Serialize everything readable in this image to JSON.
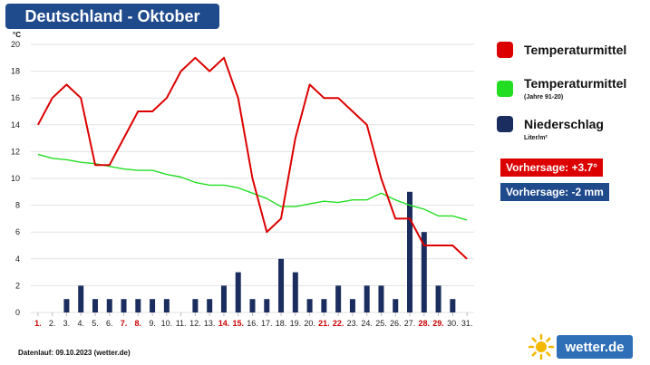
{
  "title": "Deutschland - Oktober",
  "chart_data": {
    "type": "line",
    "y_unit": "°C",
    "y_ticks": [
      0,
      2,
      4,
      6,
      8,
      10,
      12,
      14,
      16,
      18,
      20
    ],
    "ylim": [
      0,
      20
    ],
    "categories": [
      "1.",
      "2.",
      "3.",
      "4.",
      "5.",
      "6.",
      "7.",
      "8.",
      "9.",
      "10.",
      "11.",
      "12.",
      "13.",
      "14.",
      "15.",
      "16.",
      "17.",
      "18.",
      "19.",
      "20.",
      "21.",
      "22.",
      "23.",
      "24.",
      "25.",
      "26.",
      "27.",
      "28.",
      "29.",
      "30.",
      "31."
    ],
    "highlighted_categories": [
      "1.",
      "7.",
      "8.",
      "14.",
      "15.",
      "21.",
      "22.",
      "28.",
      "29."
    ],
    "series": [
      {
        "name": "Temperaturmittel",
        "type": "line",
        "color": "#dd0000",
        "values": [
          14,
          16,
          17,
          16,
          11,
          11,
          13,
          15,
          15,
          16,
          18,
          19,
          18,
          19,
          16,
          10,
          6,
          7,
          13,
          17,
          16,
          16,
          15,
          14,
          10,
          7,
          7,
          5,
          5,
          5,
          4
        ]
      },
      {
        "name": "Temperaturmittel",
        "subtitle": "(Jahre 91-20)",
        "type": "line",
        "color": "#22dd22",
        "values": [
          11.8,
          11.5,
          11.4,
          11.2,
          11.1,
          10.9,
          10.7,
          10.6,
          10.6,
          10.3,
          10.1,
          9.7,
          9.5,
          9.5,
          9.3,
          8.9,
          8.5,
          7.9,
          7.9,
          8.1,
          8.3,
          8.2,
          8.4,
          8.4,
          8.9,
          8.4,
          8.0,
          7.7,
          7.2,
          7.2,
          6.9
        ]
      },
      {
        "name": "Niederschlag",
        "unit": "Liter/m²",
        "type": "bar",
        "color": "#1b2d5e",
        "values": [
          0,
          0,
          1,
          2,
          1,
          1,
          1,
          1,
          1,
          1,
          0,
          1,
          1,
          2,
          3,
          1,
          1,
          4,
          3,
          1,
          1,
          2,
          1,
          2,
          2,
          1,
          9,
          6,
          2,
          1,
          0
        ]
      }
    ],
    "grid": "horizontal"
  },
  "legend": [
    {
      "label": "Temperaturmittel",
      "sub": "",
      "color": "#dd0000"
    },
    {
      "label": "Temperaturmittel",
      "sub": "(Jahre 91-20)",
      "color": "#22dd22"
    },
    {
      "label": "Niederschlag",
      "sub": "Liter/m²",
      "color": "#1b2d5e"
    }
  ],
  "forecast": [
    {
      "text": "Vorhersage: +3.7°",
      "color": "#dd0000"
    },
    {
      "text": "Vorhersage: -2 mm",
      "color": "#1f4a8c"
    }
  ],
  "footer": "Datenlauf: 09.10.2023 (wetter.de)",
  "logo": {
    "text": "wetter.de",
    "accent": "#2f6fb8",
    "sun_color": "#f5b800"
  },
  "colors": {
    "highlight_day": "#cc0000",
    "normal_day": "#222222",
    "grid": "#e2e2e2"
  }
}
